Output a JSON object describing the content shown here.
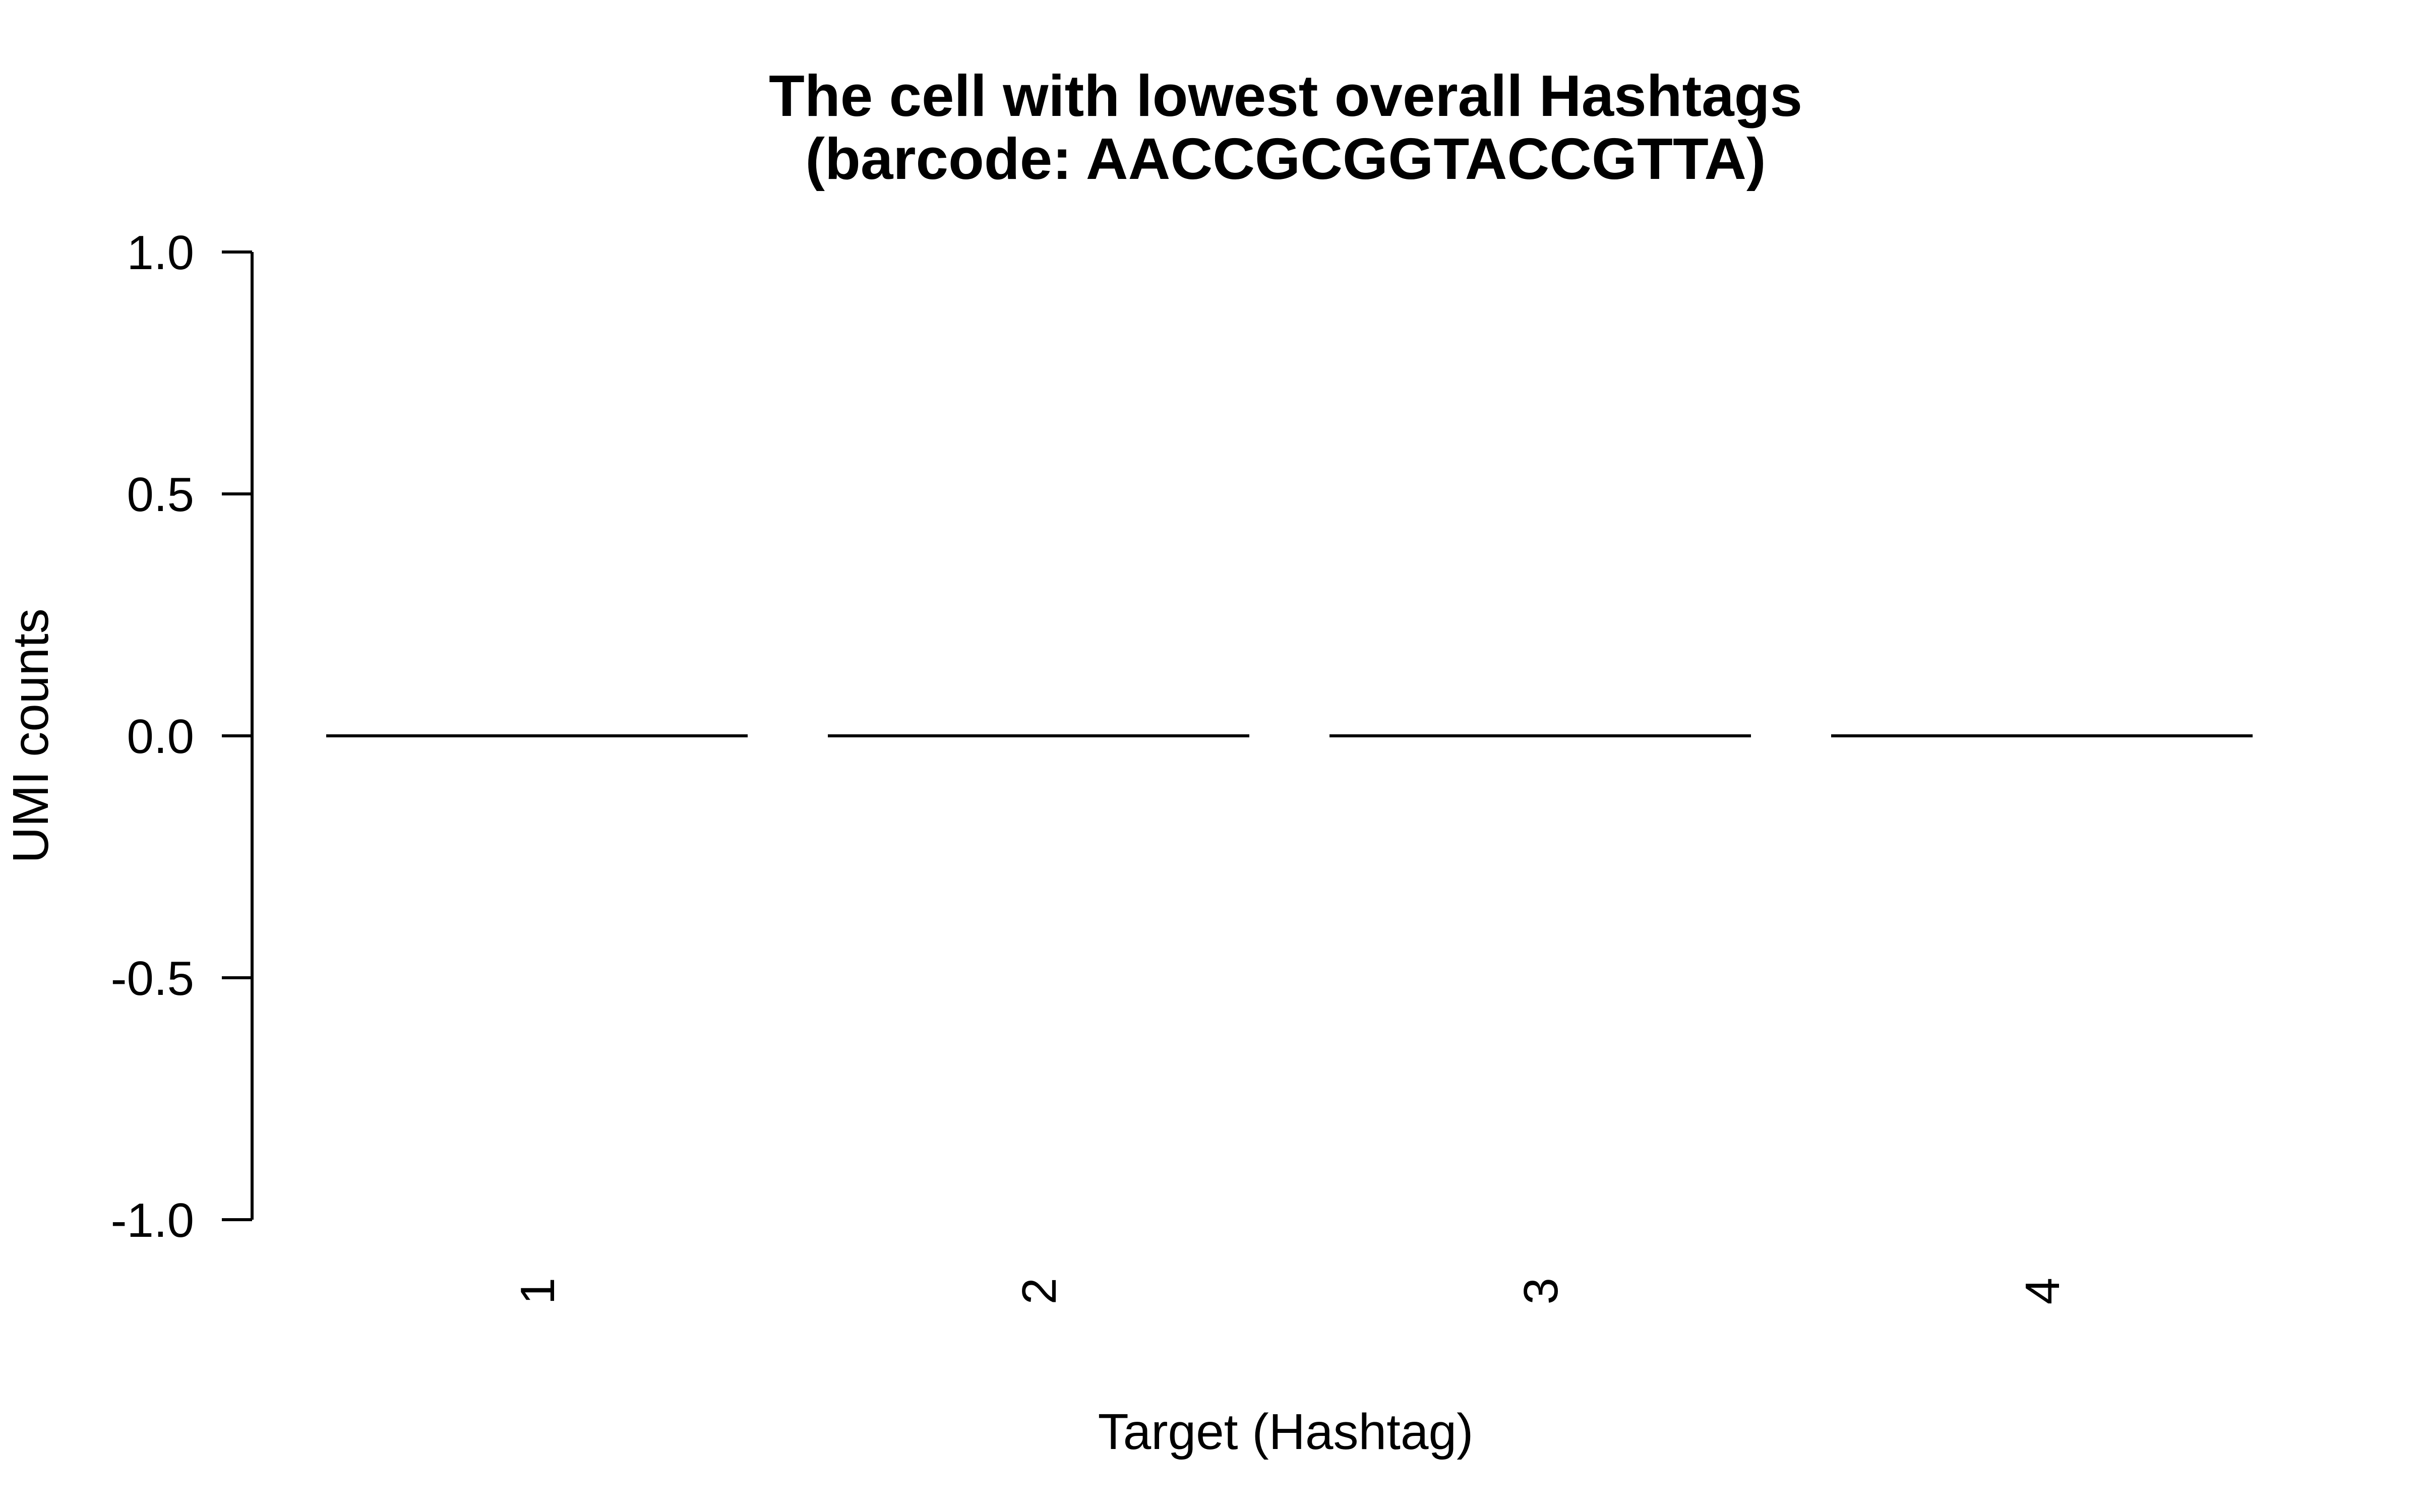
{
  "chart_data": {
    "type": "bar",
    "title_line1": "The cell with lowest overall Hashtags",
    "title_line2": "(barcode: AACCGCGGTACCGTTA)",
    "xlabel": "Target (Hashtag)",
    "ylabel": "UMI counts",
    "categories": [
      "1",
      "2",
      "3",
      "4"
    ],
    "values": [
      0,
      0,
      0,
      0
    ],
    "ylim": [
      -1.0,
      1.0
    ],
    "yticks": [
      -1.0,
      -0.5,
      0.0,
      0.5,
      1.0
    ],
    "ytick_labels": [
      "-1.0",
      "-0.5",
      "0.0",
      "0.5",
      "1.0"
    ],
    "grid": false,
    "legend": "none",
    "colors": {
      "bar_outline": "#000000",
      "bar_fill": "#ffffff"
    }
  }
}
